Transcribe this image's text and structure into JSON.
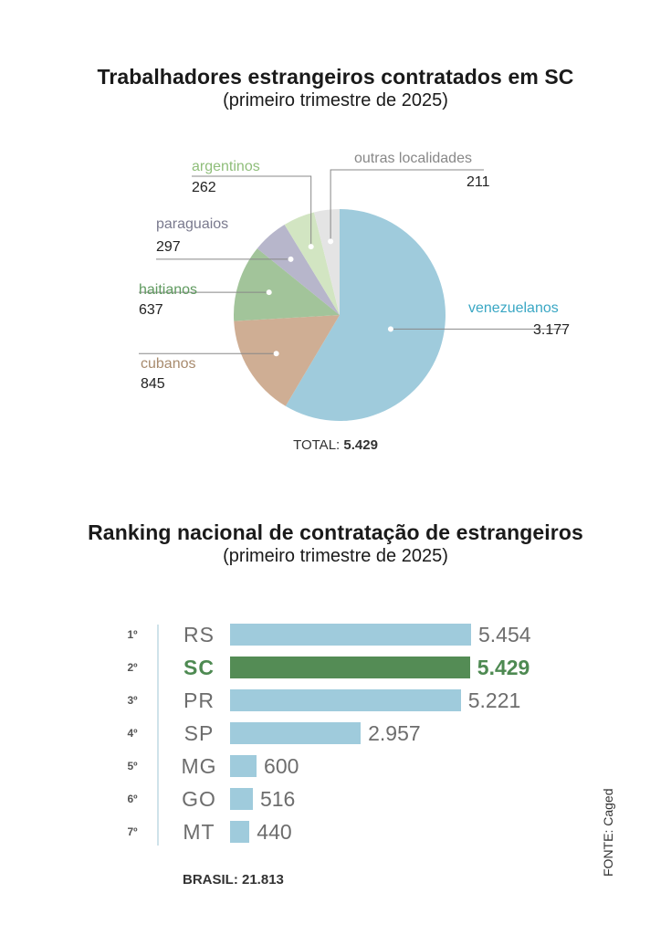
{
  "chart_data": [
    {
      "type": "pie",
      "title": "Trabalhadores estrangeiros contratados em SC",
      "subtitle": "(primeiro trimestre de 2025)",
      "slices": [
        {
          "label": "venezuelanos",
          "value": 3177,
          "display": "3.177",
          "color": "#9fcbdc",
          "label_color": "#3aa7c4"
        },
        {
          "label": "cubanos",
          "value": 845,
          "display": "845",
          "color": "#cfae94",
          "label_color": "#a88b6e"
        },
        {
          "label": "haitianos",
          "value": 637,
          "display": "637",
          "color": "#a2c49a",
          "label_color": "#5f9a5f"
        },
        {
          "label": "paraguaios",
          "value": 297,
          "display": "297",
          "color": "#b7b6cb",
          "label_color": "#7a7a8e"
        },
        {
          "label": "argentinos",
          "value": 262,
          "display": "262",
          "color": "#d2e5c2",
          "label_color": "#8fbe7a"
        },
        {
          "label": "outras localidades",
          "value": 211,
          "display": "211",
          "color": "#e4e4e4",
          "label_color": "#888888"
        }
      ],
      "total_label": "TOTAL:",
      "total_value": "5.429"
    },
    {
      "type": "bar",
      "orientation": "horizontal",
      "title": "Ranking nacional de contratação de estrangeiros",
      "subtitle": "(primeiro trimestre de 2025)",
      "categories": [
        "RS",
        "SC",
        "PR",
        "SP",
        "MG",
        "GO",
        "MT"
      ],
      "positions": [
        "1º",
        "2º",
        "3º",
        "4º",
        "5º",
        "6º",
        "7º"
      ],
      "values": [
        5454,
        5429,
        5221,
        2957,
        600,
        516,
        440
      ],
      "value_labels": [
        "5.454",
        "5.429",
        "5.221",
        "2.957",
        "600",
        "516",
        "440"
      ],
      "highlight": "SC",
      "bar_color": "#9fcbdc",
      "highlight_color": "#548c55",
      "xlim": [
        0,
        5454
      ],
      "footer": "BRASIL: 21.813"
    }
  ],
  "source": "FONTE: Caged"
}
